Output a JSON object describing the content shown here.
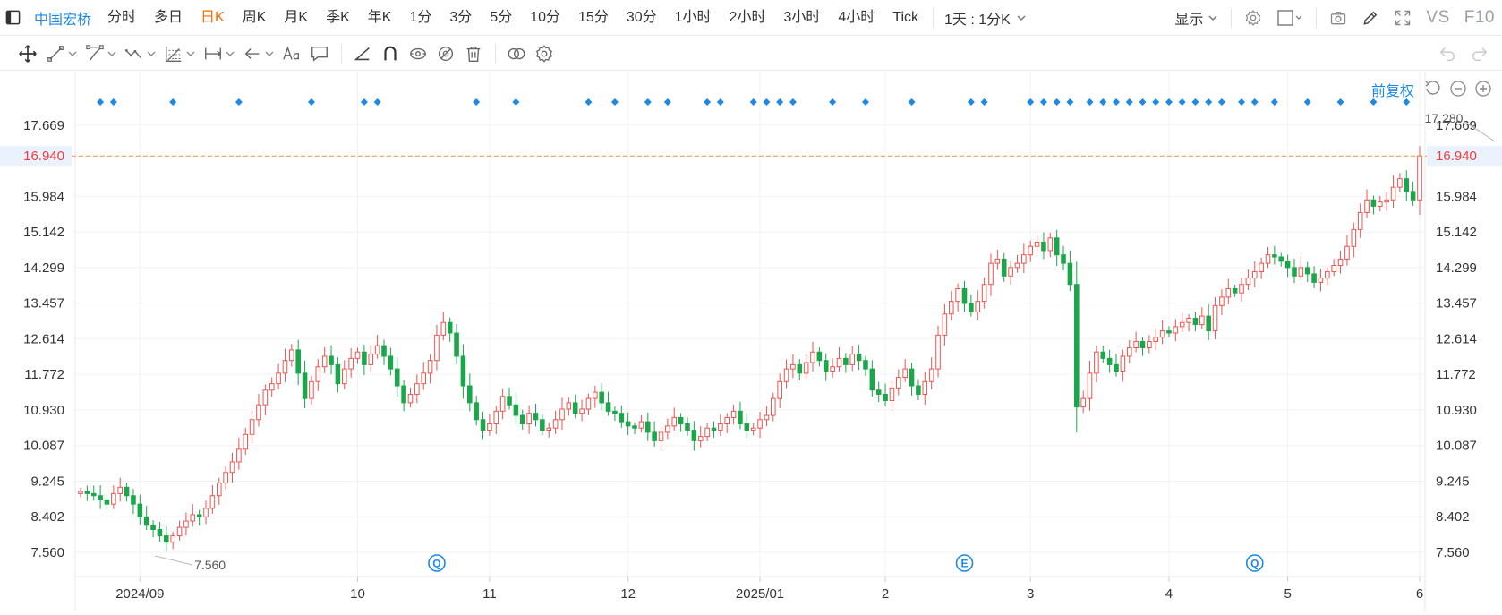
{
  "topbar": {
    "symbol": "中国宏桥",
    "periods": [
      "分时",
      "多日",
      "日K",
      "周K",
      "月K",
      "季K",
      "年K",
      "1分",
      "3分",
      "5分",
      "10分",
      "15分",
      "30分",
      "1小时",
      "2小时",
      "3小时",
      "4小时",
      "Tick"
    ],
    "active_period": "日K",
    "timeframe": "1天 : 1分K",
    "display_label": "显示",
    "vs_label": "VS",
    "f10_label": "F10"
  },
  "toolbar": {
    "tools": [
      "move-icon",
      "line-segment-icon",
      "polyline-icon",
      "wave-icon",
      "fib-grid-icon",
      "measure-range-icon",
      "arrow-left-icon",
      "text-tool-icon",
      "note-icon",
      "angle-icon",
      "magnet-icon",
      "eye-lock-icon",
      "hide-icon",
      "delete-icon",
      "link-icon",
      "settings-icon"
    ]
  },
  "chart_controls": {
    "adjust_label": "前复权"
  },
  "colors": {
    "up": "#ef5350",
    "down": "#1aa64a",
    "accent": "#1e88e5",
    "last_price_line": "#ff8a3d",
    "last_price_text": "#f23c3c"
  },
  "chart_data": {
    "type": "candlestick",
    "y_ticks": [
      "17.669",
      "15.984",
      "15.142",
      "14.299",
      "13.457",
      "12.614",
      "11.772",
      "10.930",
      "10.087",
      "9.245",
      "8.402",
      "7.560"
    ],
    "ylim": [
      7.03,
      18.47
    ],
    "x_labels": [
      {
        "label": "2024/09",
        "index": 9
      },
      {
        "label": "10",
        "index": 42
      },
      {
        "label": "11",
        "index": 62
      },
      {
        "label": "12",
        "index": 83
      },
      {
        "label": "2025/01",
        "index": 103
      },
      {
        "label": "2",
        "index": 122
      },
      {
        "label": "3",
        "index": 144
      },
      {
        "label": "4",
        "index": 165
      },
      {
        "label": "5",
        "index": 183
      },
      {
        "label": "6",
        "index": 203
      }
    ],
    "last_price": "16.940",
    "high_label": "17.280",
    "low_label": "7.560",
    "high_index": 215,
    "low_index": 11,
    "event_markers": [
      {
        "letter": "Q",
        "index": 54
      },
      {
        "letter": "E",
        "index": 134
      },
      {
        "letter": "Q",
        "index": 178
      }
    ],
    "top_marker_indices": [
      3,
      5,
      14,
      24,
      35,
      43,
      45,
      60,
      66,
      77,
      81,
      86,
      89,
      95,
      97,
      102,
      104,
      106,
      108,
      114,
      119,
      126,
      135,
      137,
      144,
      146,
      148,
      150,
      153,
      155,
      157,
      159,
      161,
      163,
      165,
      167,
      169,
      171,
      173,
      176,
      178,
      181,
      186,
      191,
      196,
      201
    ],
    "closes": [
      9.0,
      8.95,
      8.9,
      8.8,
      8.7,
      8.95,
      9.1,
      8.9,
      8.7,
      8.4,
      8.2,
      8.1,
      7.95,
      7.8,
      7.95,
      8.15,
      8.3,
      8.45,
      8.4,
      8.6,
      8.9,
      9.2,
      9.45,
      9.7,
      10.0,
      10.35,
      10.7,
      11.05,
      11.4,
      11.55,
      11.8,
      12.1,
      12.35,
      11.8,
      11.2,
      11.6,
      11.95,
      12.2,
      12.0,
      11.55,
      11.9,
      12.15,
      12.3,
      12.0,
      12.25,
      12.45,
      12.2,
      11.9,
      11.5,
      11.1,
      11.3,
      11.55,
      11.8,
      12.1,
      12.7,
      13.0,
      12.75,
      12.2,
      11.5,
      11.1,
      10.7,
      10.45,
      10.6,
      10.9,
      11.25,
      11.05,
      10.8,
      10.6,
      10.85,
      10.7,
      10.45,
      10.5,
      10.7,
      10.95,
      11.1,
      10.85,
      10.95,
      11.2,
      11.35,
      11.1,
      10.9,
      10.85,
      10.65,
      10.55,
      10.5,
      10.65,
      10.4,
      10.2,
      10.4,
      10.55,
      10.75,
      10.6,
      10.45,
      10.2,
      10.3,
      10.5,
      10.45,
      10.6,
      10.75,
      10.9,
      10.6,
      10.45,
      10.5,
      10.7,
      10.8,
      11.2,
      11.6,
      11.9,
      12.0,
      11.8,
      12.05,
      12.3,
      12.1,
      11.85,
      11.95,
      12.15,
      12.0,
      12.25,
      12.1,
      11.9,
      11.4,
      11.3,
      11.15,
      11.45,
      11.7,
      11.9,
      11.5,
      11.3,
      11.6,
      11.9,
      12.7,
      13.2,
      13.5,
      13.8,
      13.45,
      13.25,
      13.5,
      13.9,
      14.4,
      14.5,
      14.1,
      14.3,
      14.4,
      14.6,
      14.8,
      14.9,
      14.7,
      15.0,
      14.6,
      14.4,
      13.9,
      11.0,
      11.2,
      11.8,
      12.3,
      12.15,
      12.0,
      11.85,
      12.2,
      12.4,
      12.55,
      12.4,
      12.55,
      12.65,
      12.8,
      12.75,
      12.9,
      13.0,
      13.1,
      12.95,
      13.15,
      12.8,
      13.4,
      13.6,
      13.8,
      13.7,
      13.9,
      14.05,
      14.2,
      14.4,
      14.6,
      14.55,
      14.45,
      14.3,
      14.1,
      14.3,
      14.15,
      13.95,
      14.05,
      14.2,
      14.35,
      14.5,
      14.8,
      15.2,
      15.6,
      15.9,
      15.75,
      15.85,
      15.9,
      16.2,
      16.4,
      16.1,
      15.9,
      16.94
    ]
  }
}
